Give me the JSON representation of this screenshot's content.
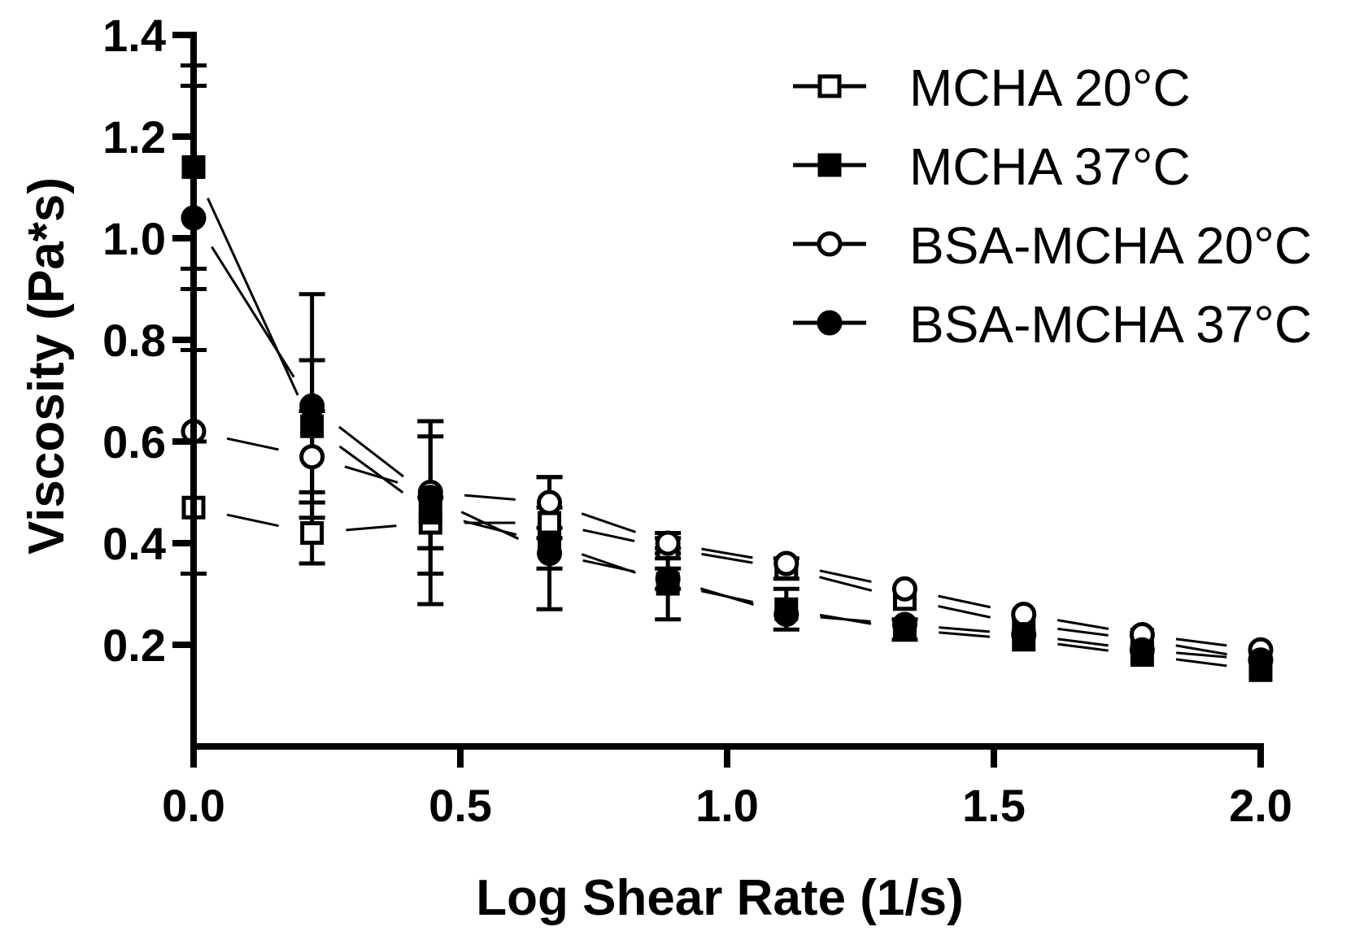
{
  "chart_data": {
    "type": "line",
    "title": "",
    "xlabel": "Log Shear Rate (1/s)",
    "ylabel": "Viscosity (Pa*s)",
    "xlim": [
      0,
      2.0
    ],
    "ylim": [
      0,
      1.4
    ],
    "x_ticks": [
      "0.0",
      "0.5",
      "1.0",
      "1.5",
      "2.0"
    ],
    "y_ticks": [
      "0.2",
      "0.4",
      "0.6",
      "0.8",
      "1.0",
      "1.2",
      "1.4"
    ],
    "x": [
      0.0,
      0.222,
      0.444,
      0.667,
      0.889,
      1.111,
      1.333,
      1.556,
      1.778,
      2.0
    ],
    "legend_position": "top-right",
    "series": [
      {
        "name": "MCHA 20°C",
        "marker": "open-square",
        "values": [
          0.47,
          0.42,
          0.44,
          0.44,
          0.39,
          0.35,
          0.29,
          0.24,
          0.21,
          0.17
        ],
        "errors": [
          0.13,
          0.06,
          0.05,
          0.03,
          0.02,
          0.02,
          0.01,
          0.01,
          0.01,
          0.01
        ]
      },
      {
        "name": "MCHA 37°C",
        "marker": "filled-square",
        "values": [
          1.14,
          0.63,
          0.46,
          0.4,
          0.32,
          0.27,
          0.23,
          0.21,
          0.18,
          0.15
        ],
        "errors": [
          0.2,
          0.13,
          0.18,
          0.13,
          0.07,
          0.04,
          0.02,
          0.01,
          0.01,
          0.01
        ]
      },
      {
        "name": "BSA-MCHA 20°C",
        "marker": "open-circle",
        "values": [
          0.62,
          0.57,
          0.5,
          0.48,
          0.4,
          0.36,
          0.31,
          0.26,
          0.22,
          0.19
        ],
        "errors": [
          0.28,
          0.09,
          0.11,
          0.05,
          0.02,
          0.01,
          0.01,
          0.01,
          0.01,
          0.01
        ]
      },
      {
        "name": "BSA-MCHA 37°C",
        "marker": "filled-circle",
        "values": [
          1.04,
          0.67,
          0.49,
          0.38,
          0.33,
          0.26,
          0.24,
          0.22,
          0.19,
          0.17
        ],
        "errors": [
          0.26,
          0.22,
          0.15,
          0.03,
          0.02,
          0.01,
          0.01,
          0.01,
          0.01,
          0.01
        ]
      }
    ]
  }
}
